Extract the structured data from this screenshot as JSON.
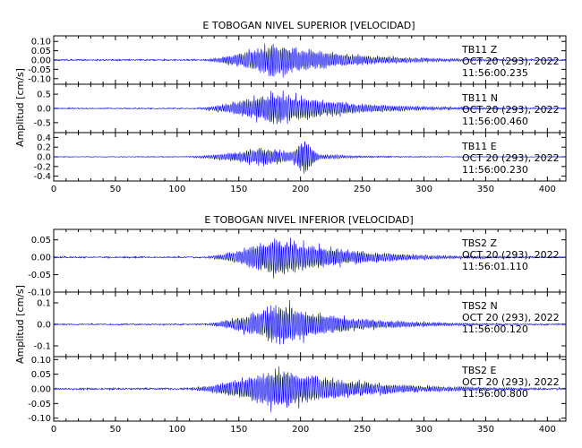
{
  "chart_data": [
    {
      "type": "line",
      "title": "E TOBOGAN NIVEL SUPERIOR [VELOCIDAD]",
      "ylabel": "Amplitud [cm/s]",
      "xlim": [
        0,
        415
      ],
      "xticks": [
        "0",
        "50",
        "100",
        "150",
        "200",
        "250",
        "300",
        "350",
        "400"
      ],
      "line_color": "#0000ee",
      "grid": false,
      "panels": [
        {
          "ylim": [
            -0.13,
            0.13
          ],
          "yticks": [
            "0.10",
            "0.05",
            "0.00",
            "-0.05",
            "-0.10"
          ],
          "ytick_values": [
            0.1,
            0.05,
            0.0,
            -0.05,
            -0.1
          ],
          "station": "TB11",
          "component": "Z",
          "date": "OCT 20 (293), 2022",
          "time": "11:56:00.235",
          "signal": {
            "onset": 115,
            "peak_time": 178,
            "peak_amp": 0.11,
            "rise": 40,
            "decay": 55,
            "noise": 0.004,
            "secondary": null
          }
        },
        {
          "ylim": [
            -0.85,
            0.85
          ],
          "yticks": [
            "0.5",
            "0.0",
            "-0.5"
          ],
          "ytick_values": [
            0.5,
            0.0,
            -0.5
          ],
          "station": "TB11",
          "component": "N",
          "date": "OCT 20 (293), 2022",
          "time": "11:56:00.460",
          "signal": {
            "onset": 110,
            "peak_time": 178,
            "peak_amp": 0.7,
            "rise": 40,
            "decay": 55,
            "noise": 0.02,
            "secondary": null
          }
        },
        {
          "ylim": [
            -0.5,
            0.5
          ],
          "yticks": [
            "0.4",
            "0.2",
            "0.0",
            "-0.2",
            "-0.4"
          ],
          "ytick_values": [
            0.4,
            0.2,
            0.0,
            -0.2,
            -0.4
          ],
          "station": "TB11",
          "component": "E",
          "date": "OCT 20 (293), 2022",
          "time": "11:56:00.230",
          "signal": {
            "onset": 100,
            "peak_time": 172,
            "peak_amp": 0.22,
            "rise": 40,
            "decay": 35,
            "noise": 0.008,
            "secondary": {
              "time": 203,
              "amp": 0.42,
              "width": 9
            }
          }
        }
      ]
    },
    {
      "type": "line",
      "title": "E TOBOGAN NIVEL INFERIOR [VELOCIDAD]",
      "ylabel": "Amplitud [cm/s]",
      "xlim": [
        0,
        415
      ],
      "xticks": [
        "0",
        "50",
        "100",
        "150",
        "200",
        "250",
        "300",
        "350",
        "400"
      ],
      "line_color": "#0000ee",
      "grid": false,
      "panels": [
        {
          "ylim": [
            -0.1,
            0.08
          ],
          "yticks": [
            "0.05",
            "0.00",
            "-0.05",
            "-0.10"
          ],
          "ytick_values": [
            0.05,
            0.0,
            -0.05,
            -0.1
          ],
          "station": "TBS2",
          "component": "Z",
          "date": "OCT 20 (293), 2022",
          "time": "11:56:01.110",
          "signal": {
            "onset": 118,
            "peak_time": 180,
            "peak_amp": 0.07,
            "rise": 45,
            "decay": 55,
            "noise": 0.002,
            "secondary": null
          }
        },
        {
          "ylim": [
            -0.15,
            0.15
          ],
          "yticks": [
            "0.1",
            "0.0",
            "-0.1"
          ],
          "ytick_values": [
            0.1,
            0.0,
            -0.1
          ],
          "station": "TBS2",
          "component": "N",
          "date": "OCT 20 (293), 2022",
          "time": "11:56:00.120",
          "signal": {
            "onset": 118,
            "peak_time": 182,
            "peak_amp": 0.12,
            "rise": 45,
            "decay": 50,
            "noise": 0.003,
            "secondary": null
          }
        },
        {
          "ylim": [
            -0.11,
            0.11
          ],
          "yticks": [
            "0.10",
            "0.05",
            "0.00",
            "-0.05",
            "-0.10"
          ],
          "ytick_values": [
            0.1,
            0.05,
            0.0,
            -0.05,
            -0.1
          ],
          "station": "TBS2",
          "component": "E",
          "date": "OCT 20 (293), 2022",
          "time": "11:56:00.800",
          "signal": {
            "onset": 100,
            "peak_time": 182,
            "peak_amp": 0.085,
            "rise": 55,
            "decay": 60,
            "noise": 0.003,
            "secondary": null
          }
        }
      ]
    }
  ]
}
